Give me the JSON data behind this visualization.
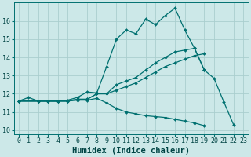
{
  "background_color": "#cce8e8",
  "grid_color": "#aacece",
  "line_color": "#007070",
  "xlabel": "Humidex (Indice chaleur)",
  "xlabel_fontsize": 7.5,
  "tick_fontsize": 6.0,
  "xlim": [
    -0.5,
    23.5
  ],
  "ylim": [
    9.8,
    17.0
  ],
  "yticks": [
    10,
    11,
    12,
    13,
    14,
    15,
    16
  ],
  "xticks": [
    0,
    1,
    2,
    3,
    4,
    5,
    6,
    7,
    8,
    9,
    10,
    11,
    12,
    13,
    14,
    15,
    16,
    17,
    18,
    19,
    20,
    21,
    22,
    23
  ],
  "line1_x": [
    0,
    1,
    2,
    3,
    4,
    5,
    6,
    7,
    8,
    9,
    10,
    11,
    12,
    13,
    14,
    15,
    16,
    17,
    18,
    19,
    20,
    21,
    22
  ],
  "line1_y": [
    11.6,
    11.8,
    11.6,
    11.6,
    11.6,
    11.65,
    11.8,
    12.1,
    12.05,
    13.5,
    15.0,
    15.5,
    15.3,
    16.1,
    15.8,
    16.3,
    16.7,
    15.5,
    14.5,
    13.3,
    12.85,
    11.55,
    10.3
  ],
  "line2_x": [
    0,
    2,
    3,
    4,
    5,
    6,
    7,
    8,
    9,
    10,
    11,
    12,
    13,
    14,
    15,
    16,
    17,
    18,
    19
  ],
  "line2_y": [
    11.6,
    11.6,
    11.6,
    11.6,
    11.6,
    11.7,
    11.7,
    12.0,
    12.0,
    12.5,
    12.7,
    12.9,
    13.3,
    13.7,
    14.0,
    14.3,
    14.4,
    14.5,
    13.3
  ],
  "line3_x": [
    0,
    2,
    3,
    4,
    5,
    6,
    7,
    8,
    9,
    10,
    11,
    12,
    13,
    14,
    15,
    16,
    17,
    18,
    19
  ],
  "line3_y": [
    11.6,
    11.6,
    11.6,
    11.6,
    11.6,
    11.7,
    11.7,
    12.0,
    12.0,
    12.2,
    12.4,
    12.6,
    12.9,
    13.2,
    13.5,
    13.7,
    13.9,
    14.1,
    14.2
  ],
  "line4_x": [
    0,
    2,
    3,
    4,
    5,
    6,
    7,
    8,
    9,
    10,
    11,
    12,
    13,
    14,
    15,
    16,
    17,
    18,
    19
  ],
  "line4_y": [
    11.6,
    11.6,
    11.6,
    11.6,
    11.6,
    11.65,
    11.65,
    11.75,
    11.5,
    11.2,
    11.0,
    10.9,
    10.8,
    10.75,
    10.7,
    10.6,
    10.5,
    10.4,
    10.25
  ]
}
